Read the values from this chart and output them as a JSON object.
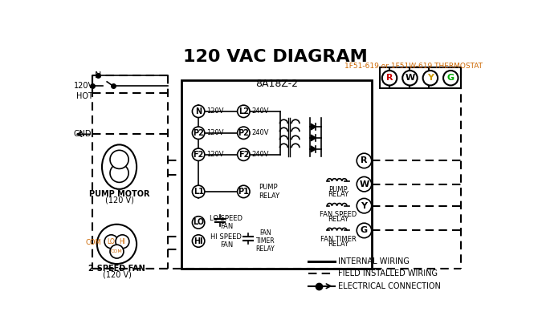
{
  "title": "120 VAC DIAGRAM",
  "title_fontsize": 16,
  "title_fontweight": "bold",
  "background_color": "#ffffff",
  "control_box_label": "8A18Z-2",
  "thermostat_label": "1F51-619 or 1F51W-619 THERMOSTAT",
  "legend": {
    "internal_wiring": "INTERNAL WIRING",
    "field_wiring": "FIELD INSTALLED WIRING",
    "electrical": "ELECTRICAL CONNECTION"
  },
  "orange_color": "#cc6600",
  "text_color": "#000000",
  "line_color": "#000000",
  "dashed_color": "#000000"
}
